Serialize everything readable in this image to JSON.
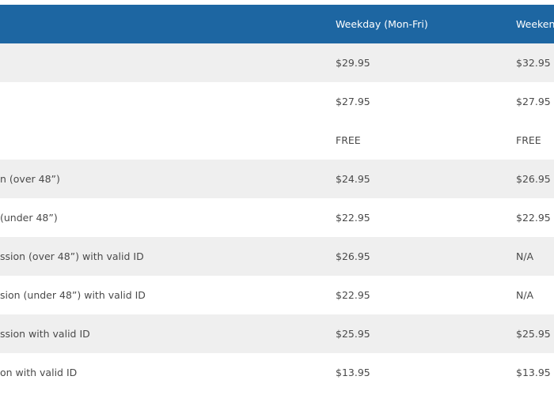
{
  "table": {
    "columns": [
      "Weekday (Mon-Fri)",
      "Weekend"
    ],
    "rows": [
      {
        "weekday": "$29.95",
        "weekend": "$32.95"
      },
      {
        "weekday": "$27.95",
        "weekend": "$27.95"
      },
      {
        "weekday": "FREE",
        "weekend": "FREE"
      },
      {
        "label": "n (over 48”)",
        "weekday": "$24.95",
        "weekend": "$26.95"
      },
      {
        "label": "(under 48”)",
        "weekday": "$22.95",
        "weekend": "$22.95"
      },
      {
        "label": "ssion (over 48”) with valid ID",
        "weekday": "$26.95",
        "weekend": "N/A"
      },
      {
        "label": "sion (under 48”) with valid ID",
        "weekday": "$22.95",
        "weekend": "N/A"
      },
      {
        "label": "ssion with valid ID",
        "weekday": "$25.95",
        "weekend": "$25.95"
      },
      {
        "label": "on with valid ID",
        "weekday": "$13.95",
        "weekend": "$13.95"
      }
    ]
  }
}
